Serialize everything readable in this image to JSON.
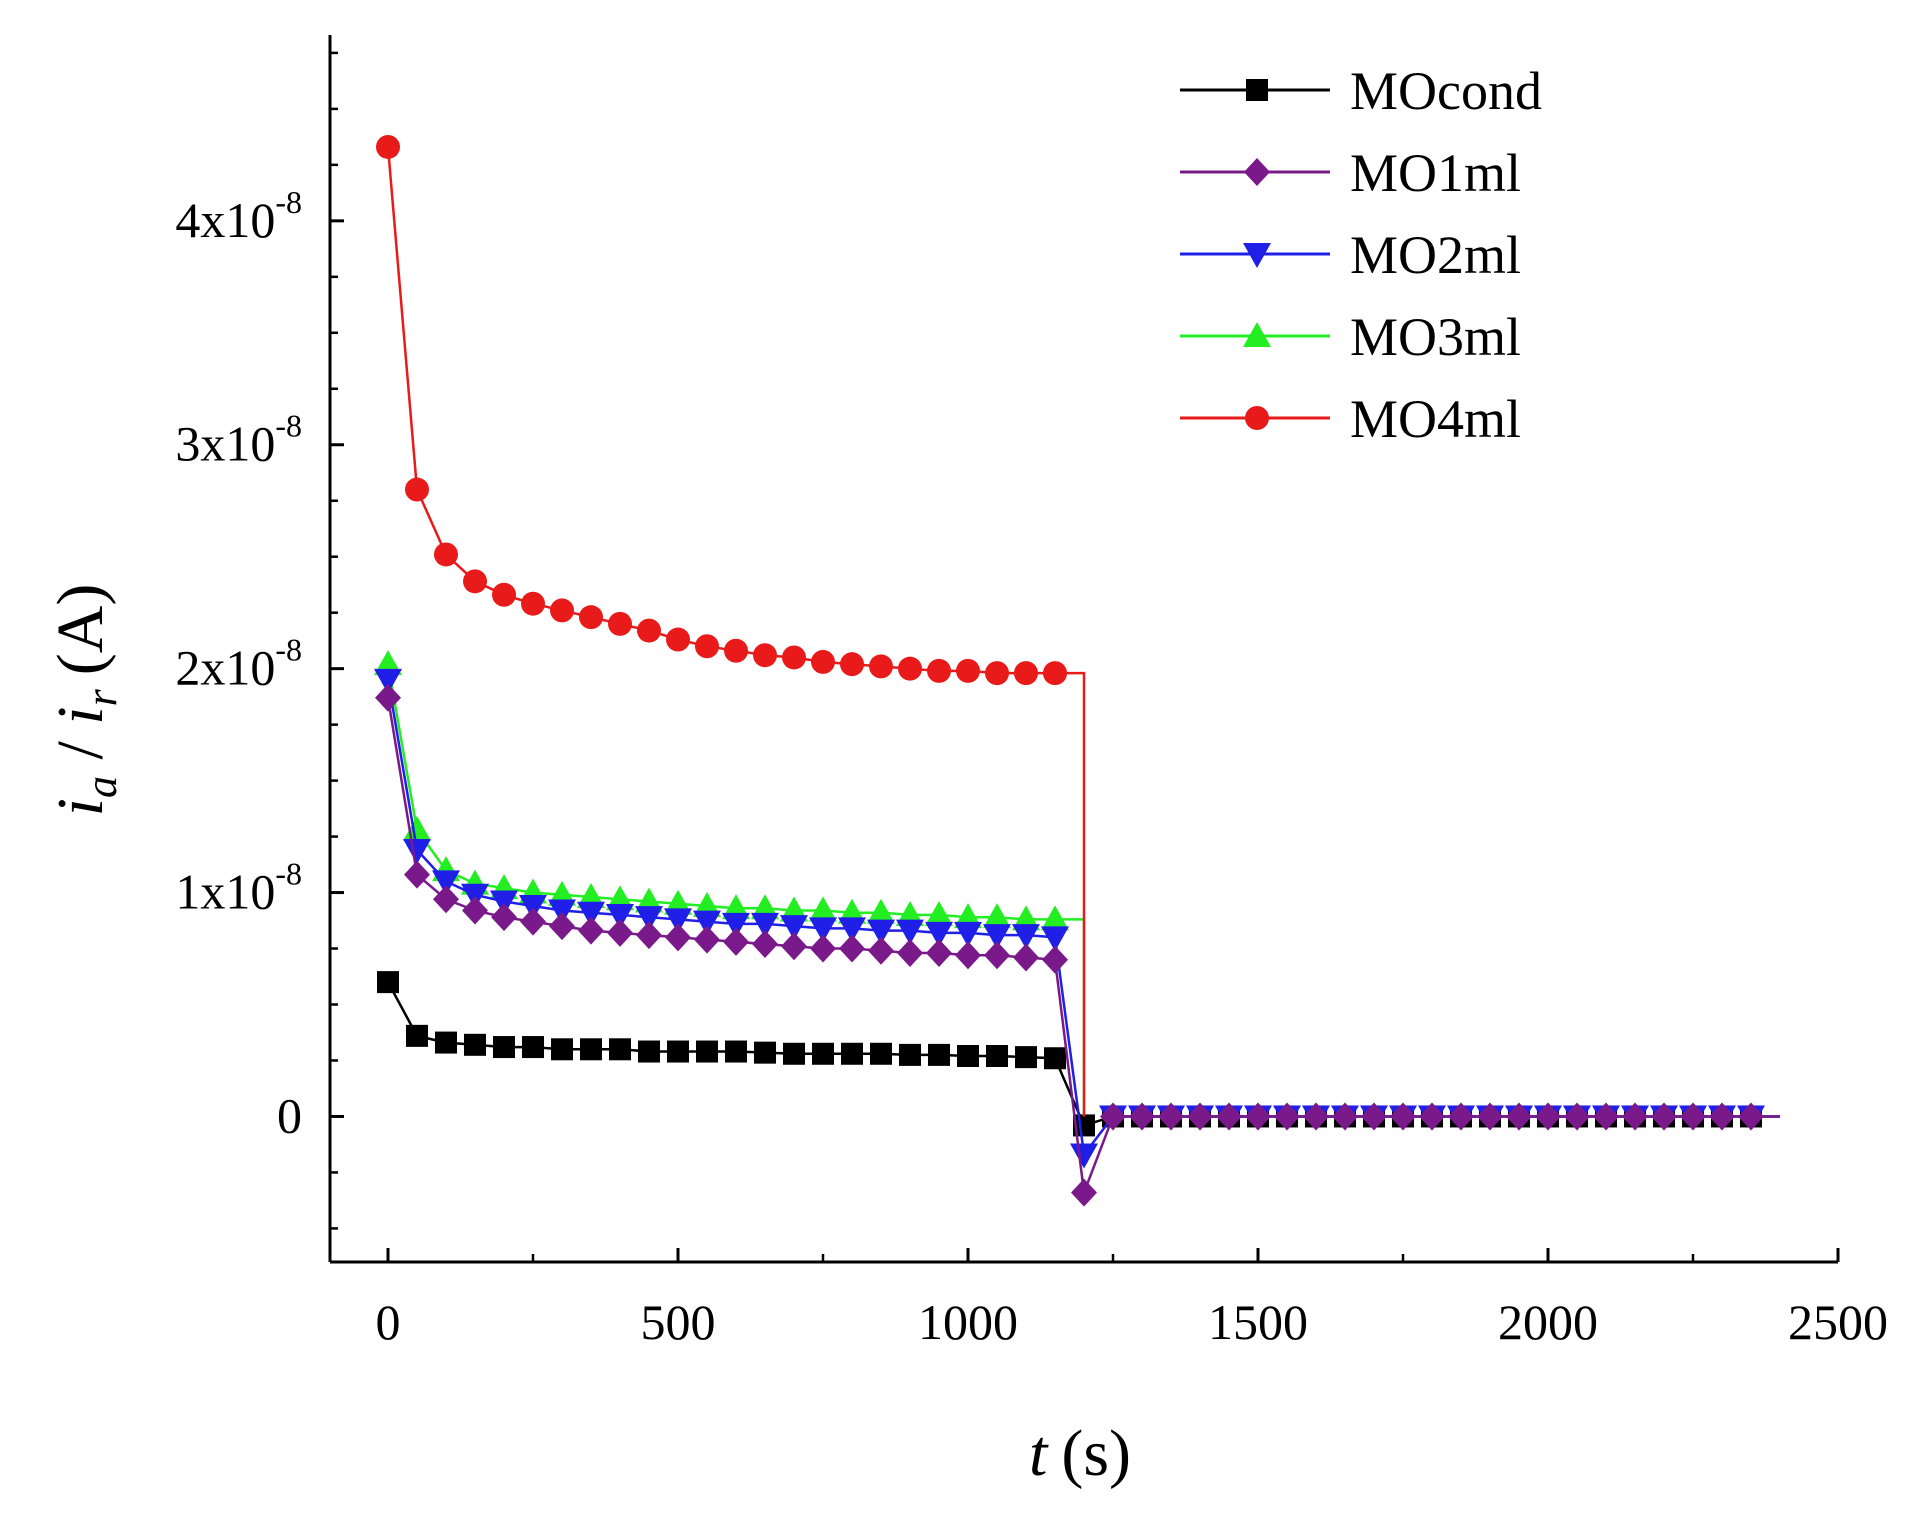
{
  "chart_data": {
    "type": "line",
    "title": "",
    "xlabel": {
      "var": "t",
      "unit": "(s)"
    },
    "ylabel": {
      "var1": "i",
      "sub1": "a",
      "sep": " / ",
      "var2": "i",
      "sub2": "r",
      "unit": "(A)"
    },
    "xlim": [
      -100,
      2500
    ],
    "ylim": [
      -6.5e-09,
      4.83e-08
    ],
    "x_ticks": [
      {
        "value": 0,
        "label": "0"
      },
      {
        "value": 500,
        "label": "500"
      },
      {
        "value": 1000,
        "label": "1000"
      },
      {
        "value": 1500,
        "label": "1500"
      },
      {
        "value": 2000,
        "label": "2000"
      },
      {
        "value": 2500,
        "label": "2500"
      }
    ],
    "y_ticks": [
      {
        "value": 0,
        "mant": "0",
        "exp": ""
      },
      {
        "value": 1e-08,
        "mant": "1x10",
        "exp": "-8"
      },
      {
        "value": 2e-08,
        "mant": "2x10",
        "exp": "-8"
      },
      {
        "value": 3e-08,
        "mant": "3x10",
        "exp": "-8"
      },
      {
        "value": 4e-08,
        "mant": "4x10",
        "exp": "-8"
      }
    ],
    "legend_position": "top-right",
    "series": [
      {
        "name": "MOcond",
        "color": "#000000",
        "marker": "square",
        "x": [
          0,
          50,
          100,
          150,
          200,
          250,
          300,
          350,
          400,
          450,
          500,
          550,
          600,
          650,
          700,
          750,
          800,
          850,
          900,
          950,
          1000,
          1050,
          1100,
          1150,
          1200,
          1250,
          1300,
          1350,
          1400,
          1450,
          1500,
          1550,
          1600,
          1650,
          1700,
          1750,
          1800,
          1850,
          1900,
          1950,
          2000,
          2050,
          2100,
          2150,
          2200,
          2250,
          2300,
          2350
        ],
        "y": [
          6e-09,
          3.6e-09,
          3.3e-09,
          3.2e-09,
          3.1e-09,
          3.1e-09,
          3e-09,
          3e-09,
          3e-09,
          2.9e-09,
          2.9e-09,
          2.9e-09,
          2.9e-09,
          2.85e-09,
          2.8e-09,
          2.8e-09,
          2.8e-09,
          2.8e-09,
          2.75e-09,
          2.75e-09,
          2.7e-09,
          2.7e-09,
          2.65e-09,
          2.6e-09,
          -4e-10,
          0,
          0,
          0,
          0,
          0,
          0,
          0,
          0,
          0,
          0,
          0,
          0,
          0,
          0,
          0,
          0,
          0,
          0,
          0,
          0,
          0,
          0,
          0
        ]
      },
      {
        "name": "MO1ml",
        "color": "#7a1a8a",
        "marker": "diamond",
        "x": [
          0,
          50,
          100,
          150,
          200,
          250,
          300,
          350,
          400,
          450,
          500,
          550,
          600,
          650,
          700,
          750,
          800,
          850,
          900,
          950,
          1000,
          1050,
          1100,
          1150,
          1200,
          1250,
          1300,
          1350,
          1400,
          1450,
          1500,
          1550,
          1600,
          1650,
          1700,
          1750,
          1800,
          1850,
          1900,
          1950,
          2000,
          2050,
          2100,
          2150,
          2200,
          2250,
          2300,
          2350
        ],
        "y": [
          1.87e-08,
          1.08e-08,
          9.7e-09,
          9.2e-09,
          8.9e-09,
          8.7e-09,
          8.5e-09,
          8.3e-09,
          8.2e-09,
          8.1e-09,
          8e-09,
          7.9e-09,
          7.8e-09,
          7.7e-09,
          7.6e-09,
          7.5e-09,
          7.5e-09,
          7.4e-09,
          7.3e-09,
          7.3e-09,
          7.2e-09,
          7.2e-09,
          7.1e-09,
          7e-09,
          -3.4e-09,
          0,
          0,
          0,
          0,
          0,
          0,
          0,
          0,
          0,
          0,
          0,
          0,
          0,
          0,
          0,
          0,
          0,
          0,
          0,
          0,
          0,
          0,
          0
        ]
      },
      {
        "name": "MO2ml",
        "color": "#1f1fe8",
        "marker": "triangle-down",
        "x": [
          0,
          50,
          100,
          150,
          200,
          250,
          300,
          350,
          400,
          450,
          500,
          550,
          600,
          650,
          700,
          750,
          800,
          850,
          900,
          950,
          1000,
          1050,
          1100,
          1150,
          1200,
          1250,
          1300,
          1350,
          1400,
          1450,
          1500,
          1550,
          1600,
          1650,
          1700,
          1750,
          1800,
          1850,
          1900,
          1950,
          2000,
          2050,
          2100,
          2150,
          2200,
          2250,
          2300,
          2350
        ],
        "y": [
          1.95e-08,
          1.19e-08,
          1.05e-08,
          9.9e-09,
          9.6e-09,
          9.4e-09,
          9.2e-09,
          9.1e-09,
          9e-09,
          8.9e-09,
          8.8e-09,
          8.7e-09,
          8.6e-09,
          8.6e-09,
          8.5e-09,
          8.4e-09,
          8.4e-09,
          8.3e-09,
          8.3e-09,
          8.2e-09,
          8.2e-09,
          8.1e-09,
          8.1e-09,
          8e-09,
          -1.7e-09,
          0,
          0,
          0,
          0,
          0,
          0,
          0,
          0,
          0,
          0,
          0,
          0,
          0,
          0,
          0,
          0,
          0,
          0,
          0,
          0,
          0,
          0,
          0
        ]
      },
      {
        "name": "MO3ml",
        "color": "#22ee22",
        "marker": "triangle-up",
        "x": [
          0,
          50,
          100,
          150,
          200,
          250,
          300,
          350,
          400,
          450,
          500,
          550,
          600,
          650,
          700,
          750,
          800,
          850,
          900,
          950,
          1000,
          1050,
          1100,
          1150
        ],
        "y": [
          2.02e-08,
          1.28e-08,
          1.1e-08,
          1.04e-08,
          1.02e-08,
          1e-08,
          9.9e-09,
          9.8e-09,
          9.7e-09,
          9.6e-09,
          9.5e-09,
          9.4e-09,
          9.3e-09,
          9.3e-09,
          9.2e-09,
          9.2e-09,
          9.1e-09,
          9.1e-09,
          9e-09,
          9e-09,
          8.9e-09,
          8.9e-09,
          8.8e-09,
          8.8e-09
        ]
      },
      {
        "name": "MO4ml",
        "color": "#e81a1a",
        "marker": "circle",
        "x": [
          0,
          50,
          100,
          150,
          200,
          250,
          300,
          350,
          400,
          450,
          500,
          550,
          600,
          650,
          700,
          750,
          800,
          850,
          900,
          950,
          1000,
          1050,
          1100,
          1150
        ],
        "y": [
          4.33e-08,
          2.8e-08,
          2.51e-08,
          2.39e-08,
          2.33e-08,
          2.29e-08,
          2.26e-08,
          2.23e-08,
          2.2e-08,
          2.17e-08,
          2.13e-08,
          2.1e-08,
          2.08e-08,
          2.06e-08,
          2.05e-08,
          2.03e-08,
          2.02e-08,
          2.01e-08,
          2e-08,
          1.99e-08,
          1.99e-08,
          1.98e-08,
          1.98e-08,
          1.98e-08
        ]
      }
    ]
  }
}
